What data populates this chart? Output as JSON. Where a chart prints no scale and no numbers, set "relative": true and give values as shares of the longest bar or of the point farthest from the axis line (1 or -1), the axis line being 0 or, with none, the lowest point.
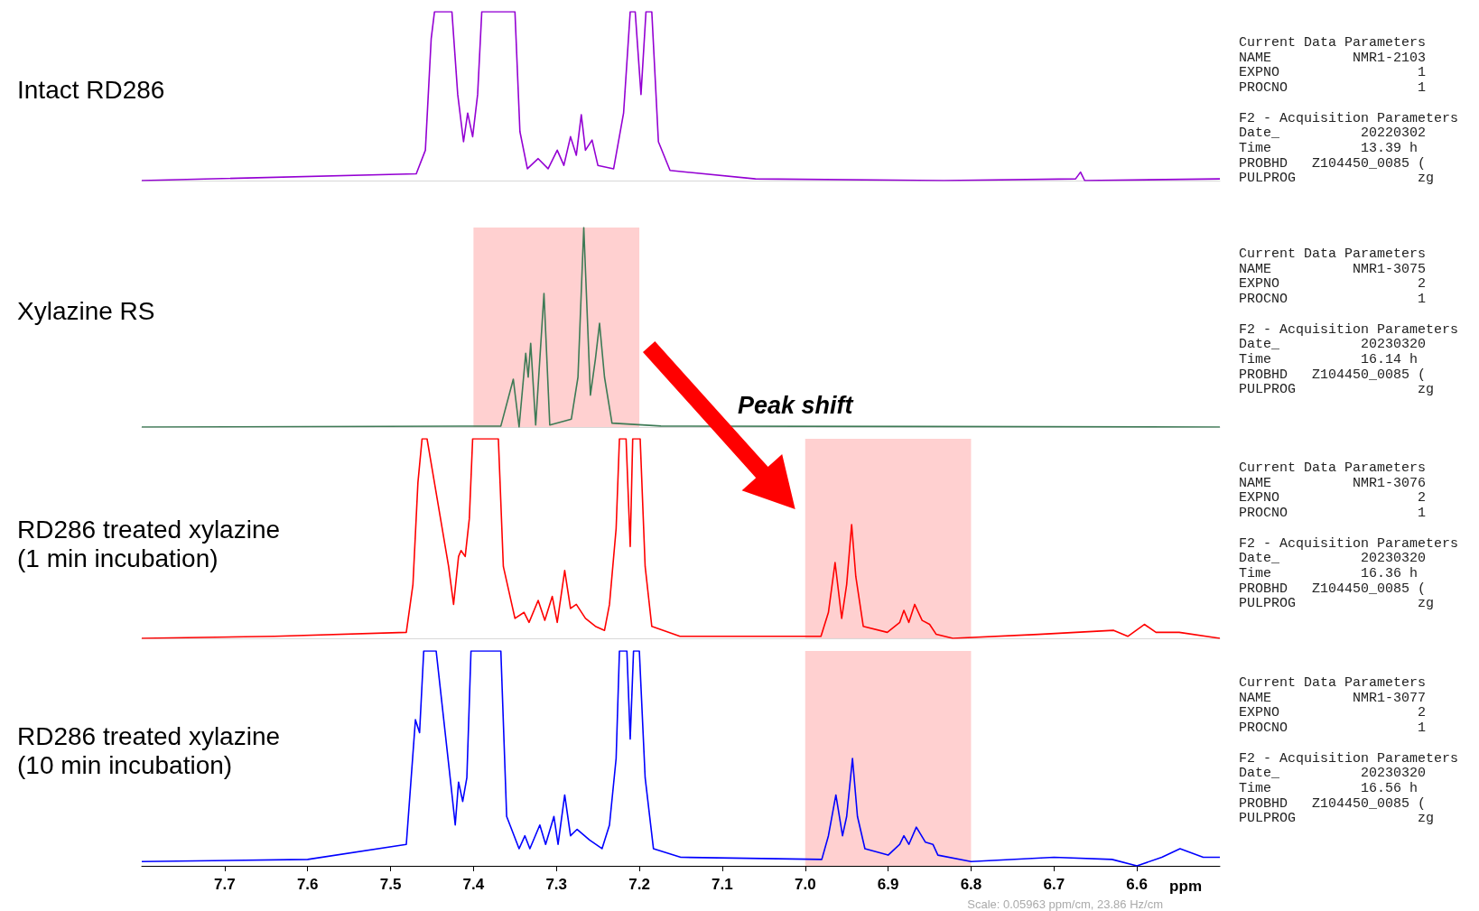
{
  "chart_data": [
    {
      "type": "line",
      "title": "Intact RD286",
      "relative": true,
      "xlim": [
        7.8,
        6.5
      ],
      "tick_labels": false,
      "series": [
        {
          "color": "#9400d3",
          "x": [
            7.8,
            7.469,
            7.458,
            7.451,
            7.447,
            7.426,
            7.419,
            7.412,
            7.407,
            7.401,
            7.395,
            7.39,
            7.35,
            7.344,
            7.335,
            7.322,
            7.31,
            7.299,
            7.291,
            7.283,
            7.276,
            7.27,
            7.265,
            7.257,
            7.25,
            7.231,
            7.219,
            7.211,
            7.205,
            7.198,
            7.192,
            7.185,
            7.177,
            7.163,
            7.06,
            6.833,
            6.674,
            6.668,
            6.663,
            6.5
          ],
          "values": [
            0.0,
            0.04,
            0.18,
            0.84,
            1,
            1,
            0.51,
            0.23,
            0.4,
            0.26,
            0.51,
            1,
            1,
            0.29,
            0.07,
            0.13,
            0.07,
            0.18,
            0.09,
            0.26,
            0.15,
            0.39,
            0.18,
            0.24,
            0.09,
            0.07,
            0.4,
            1,
            1,
            0.51,
            1,
            1,
            0.23,
            0.06,
            0.01,
            0.0,
            0.01,
            0.05,
            0.0,
            0.01
          ]
        }
      ]
    },
    {
      "type": "other",
      "annotations": [
        "Current Data Parameters",
        "NAME          NMR1-2103",
        "EXPNO                 1",
        "PROCNO                1",
        "F2 - Acquisition Parameters",
        "Date_          20220302",
        "Time           13.39 h",
        "PROBHD   Z104450_0085 (",
        "PULPROG               zg"
      ]
    },
    {
      "type": "line",
      "title": "Xylazine RS",
      "relative": true,
      "xlim": [
        7.8,
        6.5
      ],
      "tick_labels": false,
      "annotations": [
        "Peak shift"
      ],
      "bands": [
        {
          "axis": "x",
          "from": 7.4,
          "to": 7.2,
          "color": "#ffc8c8"
        }
      ],
      "series": [
        {
          "color": "#3d7a55",
          "x": [
            7.8,
            7.367,
            7.352,
            7.345,
            7.337,
            7.334,
            7.331,
            7.325,
            7.315,
            7.308,
            7.282,
            7.274,
            7.267,
            7.259,
            7.253,
            7.248,
            7.242,
            7.233,
            7.174,
            6.5
          ],
          "values": [
            0.0,
            0.005,
            0.24,
            0.0,
            0.37,
            0.25,
            0.42,
            0.01,
            0.67,
            0.01,
            0.04,
            0.25,
            1,
            0.16,
            0.34,
            0.52,
            0.25,
            0.02,
            0.005,
            0.0
          ]
        }
      ]
    },
    {
      "type": "other",
      "annotations": [
        "Current Data Parameters",
        "NAME          NMR1-3075",
        "EXPNO                 2",
        "PROCNO                1",
        "F2 - Acquisition Parameters",
        "Date_          20230320",
        "Time           16.14 h",
        "PROBHD   Z104450_0085 (",
        "PULPROG               zg"
      ]
    },
    {
      "type": "line",
      "title": "RD286 treated xylazine\n(1 min incubation)",
      "relative": true,
      "xlim": [
        7.8,
        6.5
      ],
      "tick_labels": false,
      "bands": [
        {
          "axis": "x",
          "from": 7.0,
          "to": 6.8,
          "color": "#ffc8c8"
        }
      ],
      "series": [
        {
          "color": "#ff0000",
          "x": [
            7.8,
            7.64,
            7.481,
            7.473,
            7.467,
            7.462,
            7.456,
            7.43,
            7.424,
            7.418,
            7.415,
            7.41,
            7.405,
            7.401,
            7.37,
            7.364,
            7.35,
            7.339,
            7.333,
            7.322,
            7.314,
            7.305,
            7.299,
            7.29,
            7.283,
            7.276,
            7.265,
            7.253,
            7.242,
            7.236,
            7.228,
            7.224,
            7.216,
            7.211,
            7.208,
            7.199,
            7.193,
            7.185,
            7.151,
            6.981,
            6.972,
            6.964,
            6.956,
            6.95,
            6.944,
            6.939,
            6.93,
            6.901,
            6.886,
            6.881,
            6.875,
            6.868,
            6.859,
            6.85,
            6.842,
            6.822,
            6.719,
            6.628,
            6.611,
            6.591,
            6.577,
            6.549,
            6.5
          ],
          "values": [
            0.0,
            0.01,
            0.03,
            0.27,
            0.78,
            1,
            1,
            0.36,
            0.17,
            0.41,
            0.44,
            0.41,
            0.6,
            1,
            1,
            0.36,
            0.1,
            0.13,
            0.08,
            0.19,
            0.09,
            0.21,
            0.08,
            0.34,
            0.15,
            0.17,
            0.1,
            0.06,
            0.04,
            0.17,
            0.55,
            1,
            1,
            0.46,
            1,
            1,
            0.36,
            0.06,
            0.01,
            0.01,
            0.13,
            0.38,
            0.1,
            0.27,
            0.57,
            0.31,
            0.06,
            0.03,
            0.08,
            0.14,
            0.08,
            0.17,
            0.09,
            0.07,
            0.02,
            0.0,
            0.02,
            0.04,
            0.01,
            0.07,
            0.03,
            0.03,
            0.0
          ]
        }
      ]
    },
    {
      "type": "other",
      "annotations": [
        "Current Data Parameters",
        "NAME          NMR1-3076",
        "EXPNO                 2",
        "PROCNO                1",
        "F2 - Acquisition Parameters",
        "Date_          20230320",
        "Time           16.36 h",
        "PROBHD   Z104450_0085 (",
        "PULPROG               zg"
      ]
    },
    {
      "type": "line",
      "title": "RD286 treated xylazine\n(10 min incubation)",
      "relative": true,
      "xlim": [
        7.8,
        6.5
      ],
      "xlabel": "ppm",
      "xticks": [
        7.7,
        7.6,
        7.5,
        7.4,
        7.3,
        7.2,
        7.1,
        {
          "value": 7.0,
          "label": "7.0"
        },
        6.9,
        6.8,
        6.7,
        6.6
      ],
      "annotations": [
        "Scale: 0.05963 ppm/cm, 23.86 Hz/cm"
      ],
      "bands": [
        {
          "axis": "x",
          "from": 7.0,
          "to": 6.8,
          "color": "#ffc8c8"
        }
      ],
      "series": [
        {
          "color": "#0000ff",
          "x": [
            7.8,
            7.6,
            7.481,
            7.47,
            7.465,
            7.46,
            7.445,
            7.427,
            7.422,
            7.418,
            7.413,
            7.408,
            7.403,
            7.367,
            7.36,
            7.345,
            7.338,
            7.332,
            7.32,
            7.313,
            7.303,
            7.298,
            7.29,
            7.283,
            7.275,
            7.26,
            7.245,
            7.236,
            7.228,
            7.224,
            7.215,
            7.211,
            7.207,
            7.2,
            7.193,
            7.183,
            7.15,
            6.98,
            6.972,
            6.963,
            6.955,
            6.95,
            6.943,
            6.937,
            6.928,
            6.9,
            6.886,
            6.881,
            6.875,
            6.866,
            6.855,
            6.846,
            6.84,
            6.8,
            6.7,
            6.63,
            6.6,
            6.57,
            6.548,
            6.52,
            6.5
          ],
          "values": [
            0.02,
            0.03,
            0.1,
            0.68,
            0.62,
            1,
            1,
            0.37,
            0.19,
            0.39,
            0.3,
            0.41,
            1,
            1,
            0.23,
            0.08,
            0.14,
            0.08,
            0.19,
            0.1,
            0.23,
            0.1,
            0.33,
            0.14,
            0.17,
            0.12,
            0.08,
            0.19,
            0.5,
            1,
            1,
            0.59,
            1,
            1,
            0.41,
            0.08,
            0.04,
            0.03,
            0.14,
            0.33,
            0.14,
            0.23,
            0.5,
            0.23,
            0.08,
            0.05,
            0.1,
            0.14,
            0.1,
            0.18,
            0.11,
            0.1,
            0.05,
            0.02,
            0.04,
            0.03,
            0.0,
            0.04,
            0.08,
            0.04,
            0.04
          ]
        }
      ]
    },
    {
      "type": "other",
      "annotations": [
        "Current Data Parameters",
        "NAME          NMR1-3077",
        "EXPNO                 2",
        "PROCNO                1",
        "F2 - Acquisition Parameters",
        "Date_          20230320",
        "Time           16.56 h",
        "PROBHD   Z104450_0085 (",
        "PULPROG               zg"
      ]
    }
  ]
}
